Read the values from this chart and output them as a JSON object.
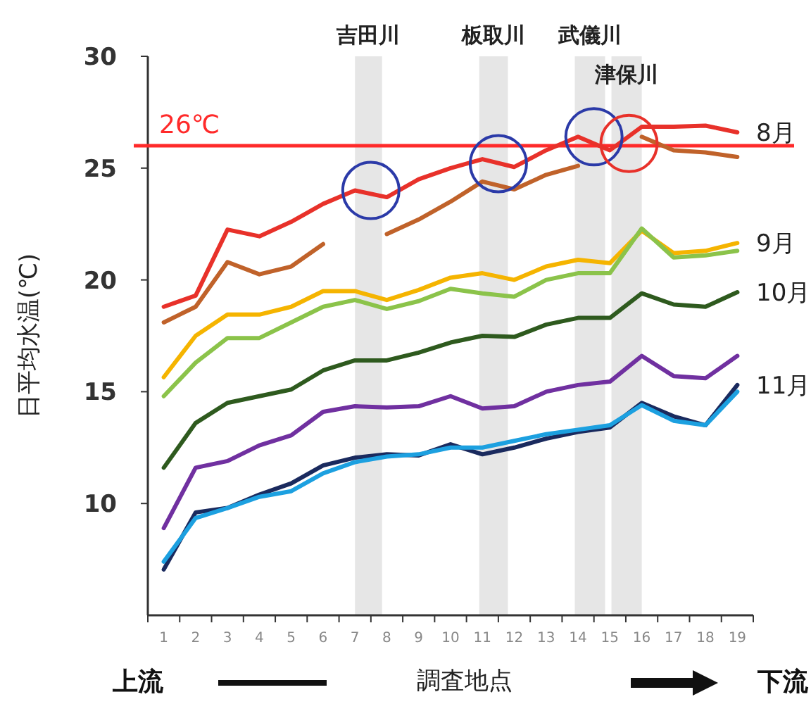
{
  "chart_data": {
    "type": "line",
    "xlabel": "調査地点",
    "ylabel": "日平均水温(℃)",
    "x": [
      1,
      2,
      3,
      4,
      5,
      6,
      7,
      8,
      9,
      10,
      11,
      12,
      13,
      14,
      15,
      16,
      17,
      18,
      19
    ],
    "xlim": [
      0.5,
      19.5
    ],
    "xticks": [
      1,
      2,
      3,
      4,
      5,
      6,
      7,
      8,
      9,
      10,
      11,
      12,
      13,
      14,
      15,
      16,
      17,
      18,
      19
    ],
    "ylim": [
      5,
      30
    ],
    "yticks": [
      10,
      15,
      20,
      25,
      30
    ],
    "series": [
      {
        "name": "8月",
        "color": "#e8312a",
        "values": [
          18.8,
          19.3,
          22.25,
          21.95,
          22.6,
          23.4,
          24.0,
          23.7,
          24.5,
          25.0,
          25.4,
          25.05,
          25.8,
          26.4,
          25.8,
          26.85,
          26.85,
          26.9,
          26.6
        ]
      },
      {
        "color": "#c0622a",
        "values": [
          18.1,
          18.8,
          20.8,
          20.25,
          20.6,
          21.6,
          null,
          22.05,
          22.7,
          23.5,
          24.4,
          24.05,
          24.7,
          25.1,
          null,
          26.4,
          25.8,
          25.7,
          25.5
        ]
      },
      {
        "name": "9月",
        "color": "#f5b400",
        "values": [
          15.65,
          17.5,
          18.45,
          18.45,
          18.8,
          19.5,
          19.5,
          19.1,
          19.55,
          20.1,
          20.3,
          20.0,
          20.6,
          20.9,
          20.75,
          22.2,
          21.2,
          21.3,
          21.65
        ]
      },
      {
        "color": "#8bc34a",
        "values": [
          14.8,
          16.3,
          17.4,
          17.4,
          18.1,
          18.8,
          19.1,
          18.7,
          19.05,
          19.6,
          19.4,
          19.25,
          20.0,
          20.3,
          20.3,
          22.3,
          21.0,
          21.1,
          21.3
        ]
      },
      {
        "name": "10月",
        "color": "#2e5a1e",
        "values": [
          11.6,
          13.6,
          14.5,
          14.8,
          15.1,
          15.95,
          16.4,
          16.4,
          16.75,
          17.2,
          17.5,
          17.45,
          18.0,
          18.3,
          18.3,
          19.4,
          18.9,
          18.8,
          19.45
        ]
      },
      {
        "color": "#7030a0",
        "values": [
          8.9,
          11.6,
          11.9,
          12.6,
          13.05,
          14.1,
          14.35,
          14.3,
          14.35,
          14.8,
          14.25,
          14.35,
          15.0,
          15.3,
          15.45,
          16.6,
          15.7,
          15.6,
          16.6
        ]
      },
      {
        "name": "11月",
        "color": "#1a2a5e",
        "values": [
          7.05,
          9.6,
          9.8,
          10.4,
          10.9,
          11.7,
          12.05,
          12.2,
          12.15,
          12.65,
          12.2,
          12.5,
          12.9,
          13.2,
          13.4,
          14.5,
          13.9,
          13.5,
          15.3
        ]
      },
      {
        "color": "#1ca0e0",
        "values": [
          7.4,
          9.35,
          9.8,
          10.3,
          10.55,
          11.35,
          11.85,
          12.1,
          12.2,
          12.5,
          12.5,
          12.8,
          13.1,
          13.3,
          13.5,
          14.4,
          13.7,
          13.5,
          15.0
        ]
      }
    ],
    "ref_lines": [
      {
        "axis": "y",
        "value": 26,
        "label": "26℃",
        "color": "#ff2a2a"
      }
    ],
    "bands": [
      {
        "axis": "x",
        "from": 7,
        "to": 7.85,
        "label": "吉田川",
        "color": "#e6e6e6"
      },
      {
        "axis": "x",
        "from": 10.9,
        "to": 11.8,
        "label": "板取川",
        "color": "#e6e6e6"
      },
      {
        "axis": "x",
        "from": 13.9,
        "to": 14.85,
        "label": "武儀川",
        "color": "#e6e6e6"
      },
      {
        "axis": "x",
        "from": 15.05,
        "to": 16,
        "label": "津保川",
        "color": "#e6e6e6"
      }
    ],
    "annotations": [
      "上流",
      "下流"
    ]
  }
}
